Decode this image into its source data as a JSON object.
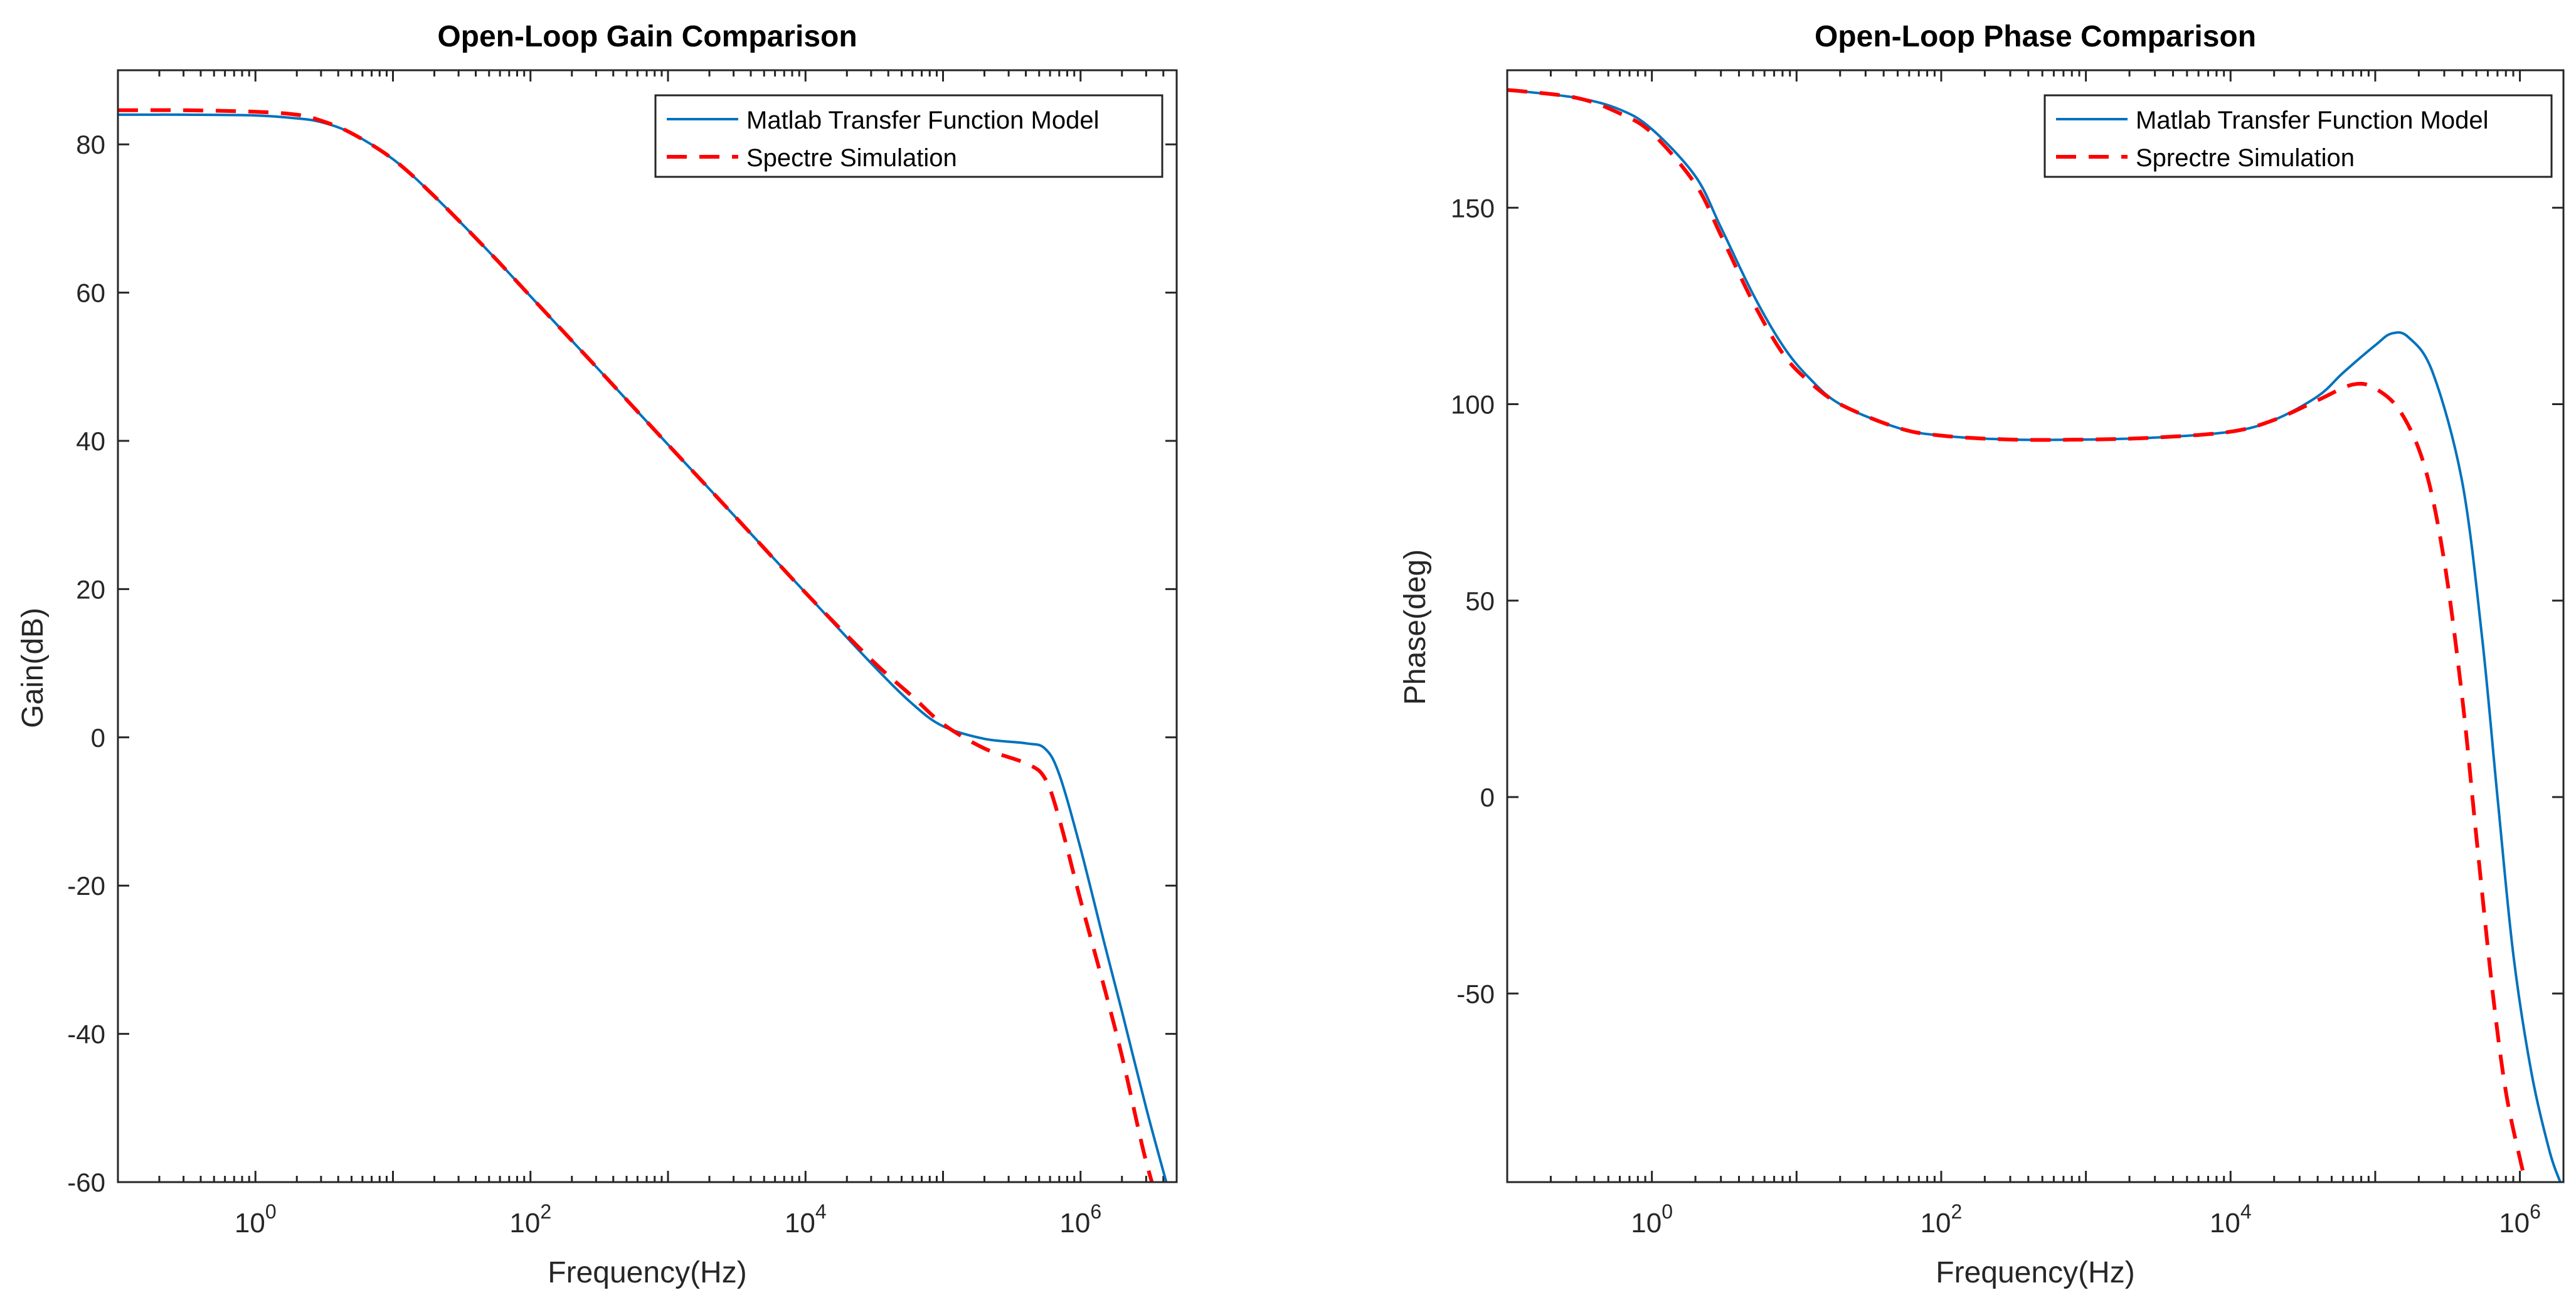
{
  "chart_data": [
    {
      "type": "line",
      "title": "Open-Loop Gain Comparison",
      "xlabel": "Frequency(Hz)",
      "ylabel": "Gain(dB)",
      "xscale": "log",
      "xlim": [
        0.1,
        5000000
      ],
      "ylim": [
        -60,
        90
      ],
      "xticks": [
        1,
        100,
        10000,
        1000000
      ],
      "xtick_labels": [
        {
          "base": "10",
          "exp": "0"
        },
        {
          "base": "10",
          "exp": "2"
        },
        {
          "base": "10",
          "exp": "4"
        },
        {
          "base": "10",
          "exp": "6"
        }
      ],
      "yticks": [
        -60,
        -40,
        -20,
        0,
        20,
        40,
        60,
        80
      ],
      "ytick_labels": [
        "-60",
        "-40",
        "-20",
        "0",
        "20",
        "40",
        "60",
        "80"
      ],
      "grid": false,
      "legend_position": "top-right",
      "series": [
        {
          "name": "Matlab Transfer Function Model",
          "color": "#0072BD",
          "style": "solid",
          "points": [
            [
              0.1,
              84.0
            ],
            [
              0.3,
              84.0
            ],
            [
              1,
              83.9
            ],
            [
              2,
              83.5
            ],
            [
              3,
              83
            ],
            [
              5,
              81.5
            ],
            [
              10,
              78
            ],
            [
              20,
              73
            ],
            [
              50,
              65.5
            ],
            [
              100,
              59.5
            ],
            [
              300,
              50
            ],
            [
              1000,
              39.5
            ],
            [
              3000,
              30
            ],
            [
              10000,
              19.5
            ],
            [
              30000,
              10
            ],
            [
              60000,
              4.5
            ],
            [
              100000,
              1.5
            ],
            [
              200000,
              -0.2
            ],
            [
              400000,
              -0.8
            ],
            [
              550000,
              -1.5
            ],
            [
              700000,
              -5
            ],
            [
              1000000,
              -15
            ],
            [
              1500000,
              -28
            ],
            [
              2000000,
              -37
            ],
            [
              3000000,
              -50
            ],
            [
              4200000,
              -60
            ]
          ]
        },
        {
          "name": "Spectre Simulation",
          "color": "#FF0000",
          "style": "dashed",
          "points": [
            [
              0.1,
              84.6
            ],
            [
              0.3,
              84.6
            ],
            [
              1,
              84.4
            ],
            [
              2,
              84
            ],
            [
              3,
              83.2
            ],
            [
              5,
              81.5
            ],
            [
              10,
              78
            ],
            [
              20,
              73
            ],
            [
              50,
              65.5
            ],
            [
              100,
              59.5
            ],
            [
              300,
              50
            ],
            [
              1000,
              39.5
            ],
            [
              3000,
              30
            ],
            [
              10000,
              19.5
            ],
            [
              30000,
              10.5
            ],
            [
              60000,
              5.5
            ],
            [
              100000,
              1.8
            ],
            [
              200000,
              -1.5
            ],
            [
              400000,
              -3.5
            ],
            [
              550000,
              -5.5
            ],
            [
              700000,
              -11
            ],
            [
              1000000,
              -22
            ],
            [
              1500000,
              -34
            ],
            [
              2000000,
              -43
            ],
            [
              2800000,
              -55
            ],
            [
              3300000,
              -60
            ]
          ]
        }
      ]
    },
    {
      "type": "line",
      "title": "Open-Loop Phase Comparison",
      "xlabel": "Frequency(Hz)",
      "ylabel": "Phase(deg)",
      "xscale": "log",
      "xlim": [
        0.1,
        2000000
      ],
      "ylim": [
        -98,
        185
      ],
      "xticks": [
        1,
        100,
        10000,
        1000000
      ],
      "xtick_labels": [
        {
          "base": "10",
          "exp": "0"
        },
        {
          "base": "10",
          "exp": "2"
        },
        {
          "base": "10",
          "exp": "4"
        },
        {
          "base": "10",
          "exp": "6"
        }
      ],
      "yticks": [
        -50,
        0,
        50,
        100,
        150
      ],
      "ytick_labels": [
        "-50",
        "0",
        "50",
        "100",
        "150"
      ],
      "grid": false,
      "legend_position": "top-right",
      "series": [
        {
          "name": "Matlab Transfer Function Model",
          "color": "#0072BD",
          "style": "solid",
          "points": [
            [
              0.1,
              180
            ],
            [
              0.3,
              178
            ],
            [
              0.6,
              175
            ],
            [
              1,
              170
            ],
            [
              2,
              158
            ],
            [
              3,
              145
            ],
            [
              5,
              128
            ],
            [
              8,
              115
            ],
            [
              12,
              107
            ],
            [
              20,
              100
            ],
            [
              50,
              94
            ],
            [
              100,
              92
            ],
            [
              300,
              91
            ],
            [
              1000,
              91
            ],
            [
              3000,
              91.5
            ],
            [
              10000,
              93
            ],
            [
              20000,
              96
            ],
            [
              40000,
              102
            ],
            [
              60000,
              108
            ],
            [
              100000,
              115
            ],
            [
              130000,
              118
            ],
            [
              170000,
              117
            ],
            [
              250000,
              108
            ],
            [
              400000,
              80
            ],
            [
              550000,
              40
            ],
            [
              700000,
              0
            ],
            [
              900000,
              -40
            ],
            [
              1200000,
              -70
            ],
            [
              1600000,
              -90
            ],
            [
              1900000,
              -98
            ]
          ]
        },
        {
          "name": "Sprectre Simulation",
          "color": "#FF0000",
          "style": "dashed",
          "points": [
            [
              0.1,
              180
            ],
            [
              0.3,
              178
            ],
            [
              0.6,
              174
            ],
            [
              1,
              169
            ],
            [
              2,
              156
            ],
            [
              3,
              143
            ],
            [
              5,
              126
            ],
            [
              8,
              113
            ],
            [
              12,
              106
            ],
            [
              20,
              100
            ],
            [
              50,
              94
            ],
            [
              100,
              92
            ],
            [
              300,
              91
            ],
            [
              1000,
              91
            ],
            [
              3000,
              91.5
            ],
            [
              10000,
              93
            ],
            [
              20000,
              96
            ],
            [
              40000,
              101
            ],
            [
              70000,
              105
            ],
            [
              100000,
              104
            ],
            [
              150000,
              98
            ],
            [
              220000,
              84
            ],
            [
              300000,
              60
            ],
            [
              400000,
              25
            ],
            [
              500000,
              -10
            ],
            [
              650000,
              -50
            ],
            [
              800000,
              -75
            ],
            [
              1000000,
              -92
            ],
            [
              1100000,
              -98
            ]
          ]
        }
      ]
    }
  ]
}
